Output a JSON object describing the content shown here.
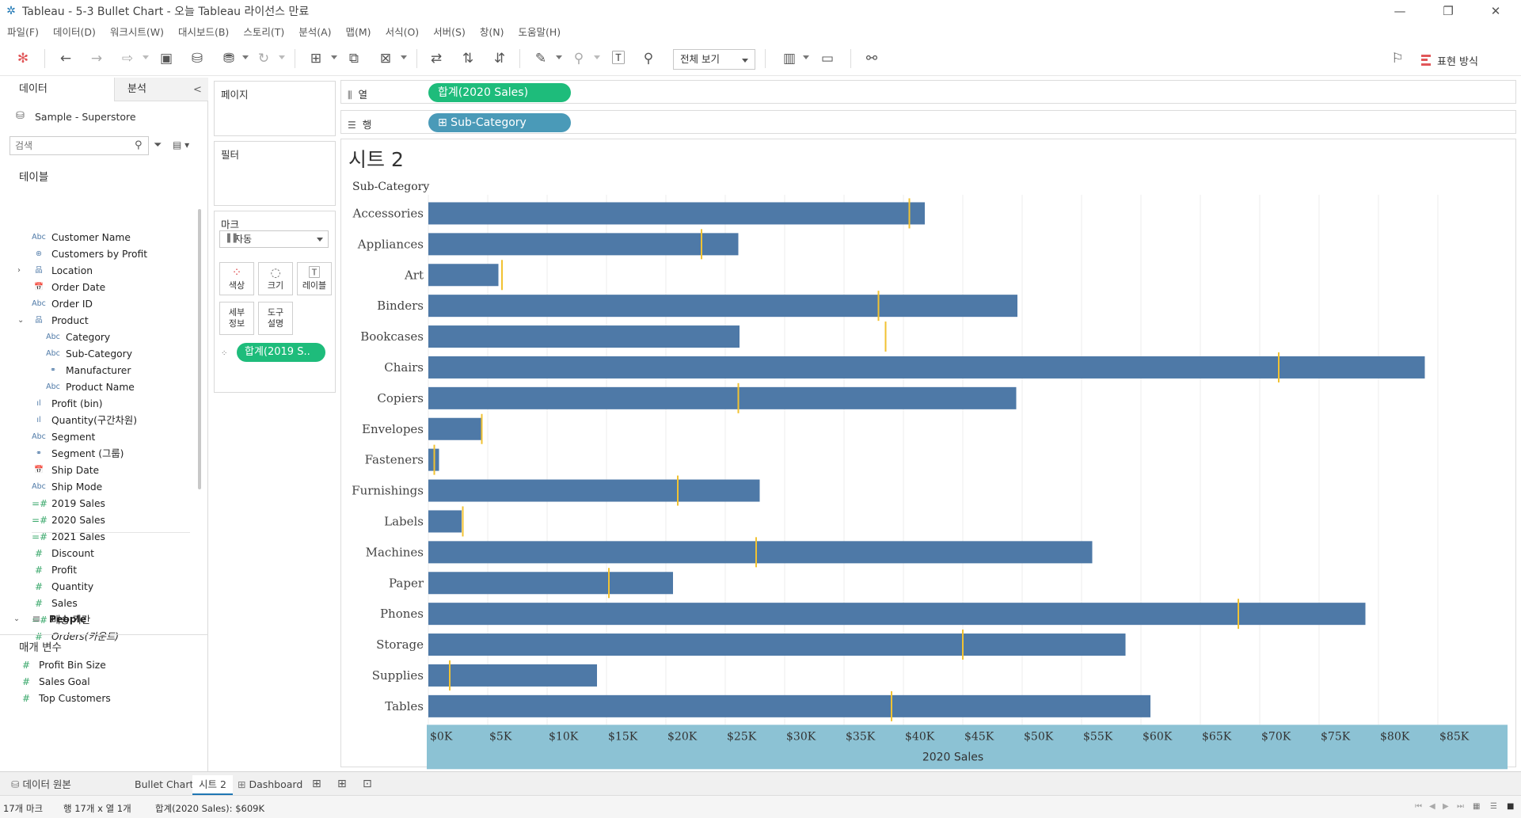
{
  "window": {
    "title": "Tableau - 5-3 Bullet Chart - 오늘 Tableau 라이선스 만료",
    "min_glyph": "—",
    "max_glyph": "❐",
    "close_glyph": "✕"
  },
  "menu": [
    "파일(F)",
    "데이터(D)",
    "워크시트(W)",
    "대시보드(B)",
    "스토리(T)",
    "분석(A)",
    "맵(M)",
    "서식(O)",
    "서버(S)",
    "창(N)",
    "도움말(H)"
  ],
  "toolbar": {
    "fit_label": "전체 보기",
    "show_me_label": "표현 방식"
  },
  "data_pane": {
    "tab_data": "데이터",
    "tab_analysis": "분석",
    "collapse_glyph": "<",
    "datasource": "Sample - Superstore",
    "search_placeholder": "검색",
    "tables_heading": "테이블",
    "fields": [
      {
        "label": "Customer Name",
        "type": "Abc",
        "indent": 0
      },
      {
        "label": "Customers by Profit",
        "type": "set",
        "indent": 0
      },
      {
        "label": "Location",
        "type": "hier",
        "indent": 0,
        "arrow": "›"
      },
      {
        "label": "Order Date",
        "type": "date",
        "indent": 0
      },
      {
        "label": "Order ID",
        "type": "Abc",
        "indent": 0
      },
      {
        "label": "Product",
        "type": "hier",
        "indent": 0,
        "arrow": "⌄"
      },
      {
        "label": "Category",
        "type": "Abc",
        "indent": 1
      },
      {
        "label": "Sub-Category",
        "type": "Abc",
        "indent": 1
      },
      {
        "label": "Manufacturer",
        "type": "group",
        "indent": 1
      },
      {
        "label": "Product Name",
        "type": "Abc",
        "indent": 1
      },
      {
        "label": "Profit (bin)",
        "type": "bin",
        "indent": 0
      },
      {
        "label": "Quantity(구간차원)",
        "type": "bin",
        "indent": 0
      },
      {
        "label": "Segment",
        "type": "Abc",
        "indent": 0
      },
      {
        "label": "Segment (그룹)",
        "type": "group",
        "indent": 0
      },
      {
        "label": "Ship Date",
        "type": "date",
        "indent": 0
      },
      {
        "label": "Ship Mode",
        "type": "Abc",
        "indent": 0
      },
      {
        "label": "2019 Sales",
        "type": "calc",
        "indent": 0
      },
      {
        "label": "2020 Sales",
        "type": "calc",
        "indent": 0
      },
      {
        "label": "2021 Sales",
        "type": "calc",
        "indent": 0
      },
      {
        "label": "Discount",
        "type": "num",
        "indent": 0
      },
      {
        "label": "Profit",
        "type": "num",
        "indent": 0
      },
      {
        "label": "Quantity",
        "type": "num",
        "indent": 0
      },
      {
        "label": "Sales",
        "type": "num",
        "indent": 0
      },
      {
        "label": "배송 기간",
        "type": "calc",
        "indent": 0
      },
      {
        "label": "Orders(카운트)",
        "type": "num",
        "indent": 0,
        "italic": true
      }
    ],
    "people_table": "People",
    "params_heading": "매개 변수",
    "params": [
      "Profit Bin Size",
      "Sales Goal",
      "Top Customers"
    ]
  },
  "shelves": {
    "pages": "페이지",
    "filters": "필터",
    "marks": "마크",
    "marks_type": "자동",
    "mark_buttons": {
      "color": "색상",
      "size": "크기",
      "label": "레이블",
      "detail": "세부\n정보",
      "tooltip": "도구\n설명"
    },
    "marks_pill": "합계(2019 S..",
    "columns_label": "열",
    "rows_label": "행",
    "columns_pill": "합계(2020 Sales)",
    "rows_pill": "⊞ Sub-Category"
  },
  "sheet": {
    "title": "시트 2",
    "row_header": "Sub-Category"
  },
  "chart_data": {
    "type": "bar",
    "orientation": "horizontal",
    "categories": [
      "Accessories",
      "Appliances",
      "Art",
      "Binders",
      "Bookcases",
      "Chairs",
      "Copiers",
      "Envelopes",
      "Fasteners",
      "Furnishings",
      "Labels",
      "Machines",
      "Paper",
      "Phones",
      "Storage",
      "Supplies",
      "Tables"
    ],
    "series": [
      {
        "name": "합계(2020 Sales)",
        "values": [
          41800,
          26100,
          5900,
          49600,
          26200,
          83900,
          49500,
          4500,
          900,
          27900,
          2800,
          55900,
          20600,
          78900,
          58700,
          14200,
          60800
        ]
      },
      {
        "name": "합계(2019 Sales)",
        "values": [
          40500,
          23000,
          6200,
          37900,
          38500,
          71600,
          26100,
          4500,
          500,
          21000,
          2900,
          27600,
          15200,
          68200,
          45000,
          1800,
          39000
        ],
        "mark": "reference-line"
      }
    ],
    "xlabel": "2020 Sales",
    "ylabel": "Sub-Category",
    "xlim": [
      0,
      88000
    ],
    "xticks": [
      0,
      5000,
      10000,
      15000,
      20000,
      25000,
      30000,
      35000,
      40000,
      45000,
      50000,
      55000,
      60000,
      65000,
      70000,
      75000,
      80000,
      85000
    ],
    "xtick_labels": [
      "$0K",
      "$5K",
      "$10K",
      "$15K",
      "$20K",
      "$25K",
      "$30K",
      "$35K",
      "$40K",
      "$45K",
      "$50K",
      "$55K",
      "$60K",
      "$65K",
      "$70K",
      "$75K",
      "$80K",
      "$85K"
    ],
    "grid": true,
    "colors": {
      "bar": "#4e79a7",
      "reference": "#f1c232",
      "axis_band": "#8cc2d4",
      "grid": "#ececec"
    }
  },
  "tabs": {
    "datasource": "데이터 원본",
    "items": [
      "Bullet Chart",
      "시트 2",
      "Dashboard"
    ],
    "active": "시트 2"
  },
  "status": {
    "marks": "17개 마크",
    "rows_cols": "행 17개  x  열 1개",
    "sum": "합계(2020 Sales): $609K"
  }
}
